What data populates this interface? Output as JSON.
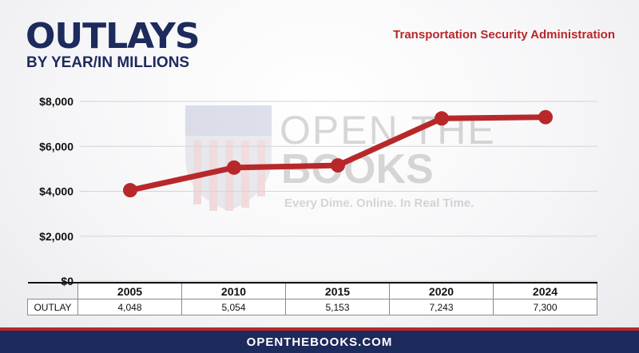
{
  "header": {
    "title": "OUTLAYS",
    "subtitle": "BY YEAR/IN MILLIONS",
    "agency": "Transportation Security Administration"
  },
  "watermark": {
    "line1": "OPEN THE",
    "line2": "BOOKS",
    "tagline": "Every Dime. Online. In Real Time."
  },
  "table": {
    "row_label": "OUTLAY",
    "years": [
      "2005",
      "2010",
      "2015",
      "2020",
      "2024"
    ],
    "values": [
      "4,048",
      "5,054",
      "5,153",
      "7,243",
      "7,300"
    ]
  },
  "footer": {
    "text": "OPENTHEBOOKS.COM"
  },
  "colors": {
    "line": "#b8282a",
    "navy": "#1d2a5c",
    "grid": "#d4d4d8"
  },
  "chart_data": {
    "type": "line",
    "title": "OUTLAYS",
    "subtitle": "BY YEAR/IN MILLIONS",
    "categories": [
      "2005",
      "2010",
      "2015",
      "2020",
      "2024"
    ],
    "values": [
      4048,
      5054,
      5153,
      7243,
      7300
    ],
    "y_ticks": [
      "$0",
      "$2,000",
      "$4,000",
      "$6,000",
      "$8,000"
    ],
    "ylim": [
      0,
      8000
    ],
    "grid": true,
    "legend": "none"
  }
}
